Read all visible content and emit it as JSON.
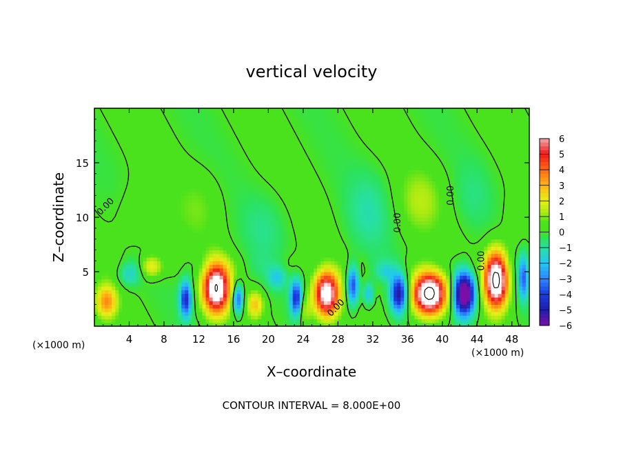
{
  "chart_data": {
    "type": "heatmap",
    "title": "vertical velocity",
    "xlabel": "X–coordinate",
    "ylabel": "Z–coordinate",
    "x_unit_left": "(×1000 m)",
    "x_unit_right": "(×1000 m)",
    "xlim": [
      0,
      50
    ],
    "ylim": [
      0,
      20
    ],
    "x_ticks": [
      4,
      8,
      12,
      16,
      20,
      24,
      28,
      32,
      36,
      40,
      44,
      48
    ],
    "y_ticks": [
      5,
      10,
      15
    ],
    "x_tick_labels": [
      "4",
      "8",
      "12",
      "16",
      "20",
      "24",
      "28",
      "32",
      "36",
      "40",
      "44",
      "48"
    ],
    "y_tick_labels": [
      "5",
      "10",
      "15"
    ],
    "colorbar": {
      "range": [
        -6,
        6
      ],
      "tick_labels": [
        "6",
        "5",
        "4",
        "3",
        "2",
        "1",
        "0",
        "−1",
        "−2",
        "−3",
        "−4",
        "−5",
        "−6"
      ],
      "tick_values": [
        6,
        5,
        4,
        3,
        2,
        1,
        0,
        -1,
        -2,
        -3,
        -4,
        -5,
        -6
      ]
    },
    "contour_labels": [
      {
        "text": "0.00",
        "x": 1.5,
        "z": 10.8,
        "angle": -45
      },
      {
        "text": "0.00",
        "x": 35.2,
        "z": 9.5,
        "angle": -90
      },
      {
        "text": "0.00",
        "x": 41.3,
        "z": 12.0,
        "angle": -90
      },
      {
        "text": "0.00",
        "x": 44.8,
        "z": 6.0,
        "angle": -90
      },
      {
        "text": "0.00",
        "x": 28.0,
        "z": 1.5,
        "angle": -45
      }
    ],
    "features": [
      {
        "x": 14.0,
        "z": 3.5,
        "sx": 1.5,
        "sz": 2.3,
        "w": 8.0
      },
      {
        "x": 26.7,
        "z": 3.0,
        "sx": 1.4,
        "sz": 2.1,
        "w": 7.5
      },
      {
        "x": 38.5,
        "z": 3.0,
        "sx": 1.9,
        "sz": 1.9,
        "w": 9.0
      },
      {
        "x": 46.2,
        "z": 4.3,
        "sx": 1.3,
        "sz": 2.5,
        "w": 9.0
      },
      {
        "x": 10.5,
        "z": 2.5,
        "sx": 0.6,
        "sz": 1.6,
        "w": -5.0
      },
      {
        "x": 16.5,
        "z": 2.5,
        "sx": 0.5,
        "sz": 1.3,
        "w": -4.5
      },
      {
        "x": 23.2,
        "z": 2.6,
        "sx": 0.6,
        "sz": 1.6,
        "w": -5.0
      },
      {
        "x": 29.7,
        "z": 3.8,
        "sx": 0.6,
        "sz": 1.8,
        "w": -4.5
      },
      {
        "x": 31.5,
        "z": 3.0,
        "sx": 0.5,
        "sz": 1.0,
        "w": -2.5
      },
      {
        "x": 35.0,
        "z": 3.0,
        "sx": 0.9,
        "sz": 1.7,
        "w": -5.5
      },
      {
        "x": 42.5,
        "z": 3.0,
        "sx": 1.2,
        "sz": 2.0,
        "w": -8.0
      },
      {
        "x": 49.3,
        "z": 4.5,
        "sx": 0.5,
        "sz": 2.0,
        "w": -4.0
      },
      {
        "x": 1.4,
        "z": 2.3,
        "sx": 1.2,
        "sz": 1.5,
        "w": 3.5
      },
      {
        "x": 18.5,
        "z": 2.0,
        "sx": 0.9,
        "sz": 1.2,
        "w": 2.8
      },
      {
        "x": 24.2,
        "z": 1.5,
        "sx": 0.8,
        "sz": 1.5,
        "w": 1.5
      },
      {
        "x": 6.5,
        "z": 5.5,
        "sx": 1.2,
        "sz": 1.0,
        "w": 2.5
      },
      {
        "x": 5.5,
        "z": 10.0,
        "sx": 3.0,
        "sz": 3.0,
        "w": 0.6
      },
      {
        "x": 12.0,
        "z": 11.0,
        "sx": 2.5,
        "sz": 3.0,
        "w": 0.7
      },
      {
        "x": 37.5,
        "z": 11.5,
        "sx": 2.5,
        "sz": 3.0,
        "w": 1.2
      },
      {
        "x": 31.5,
        "z": 10.5,
        "sx": 2.5,
        "sz": 3.5,
        "w": -0.9
      },
      {
        "x": 19.5,
        "z": 9.0,
        "sx": 2.5,
        "sz": 3.0,
        "w": -0.6
      },
      {
        "x": 43.5,
        "z": 12.0,
        "sx": 2.0,
        "sz": 3.0,
        "w": -0.5
      },
      {
        "x": 48.5,
        "z": 9.5,
        "sx": 1.5,
        "sz": 2.5,
        "w": 0.6
      },
      {
        "x": 21.0,
        "z": 4.5,
        "sx": 1.0,
        "sz": 1.0,
        "w": -1.8
      },
      {
        "x": 4.0,
        "z": 4.8,
        "sx": 1.2,
        "sz": 1.0,
        "w": -1.5
      },
      {
        "x": 33.5,
        "z": 5.0,
        "sx": 1.0,
        "sz": 0.8,
        "w": -1.3
      }
    ]
  }
}
